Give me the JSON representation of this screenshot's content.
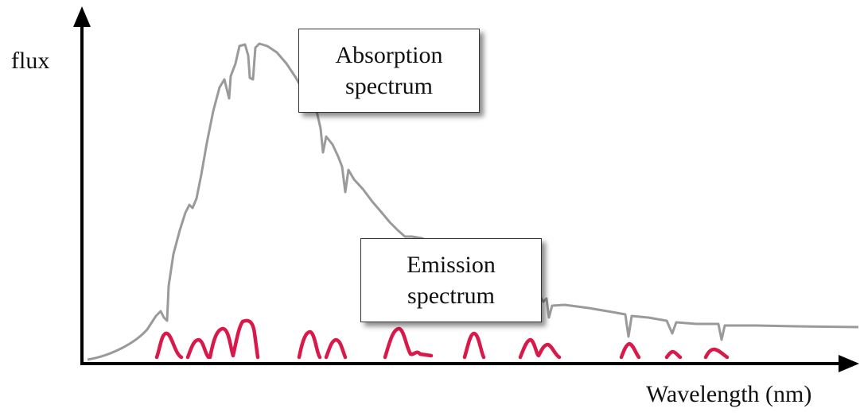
{
  "axes": {
    "y_label": "flux",
    "x_label": "Wavelength (nm)"
  },
  "callouts": {
    "absorption": {
      "line1": "Absorption",
      "line2": "spectrum"
    },
    "emission": {
      "line1": "Emission",
      "line2": "spectrum"
    }
  },
  "colors": {
    "axis": "#000000",
    "absorption_curve": "#9a9a9a",
    "emission_peaks": "#d8194a"
  }
}
